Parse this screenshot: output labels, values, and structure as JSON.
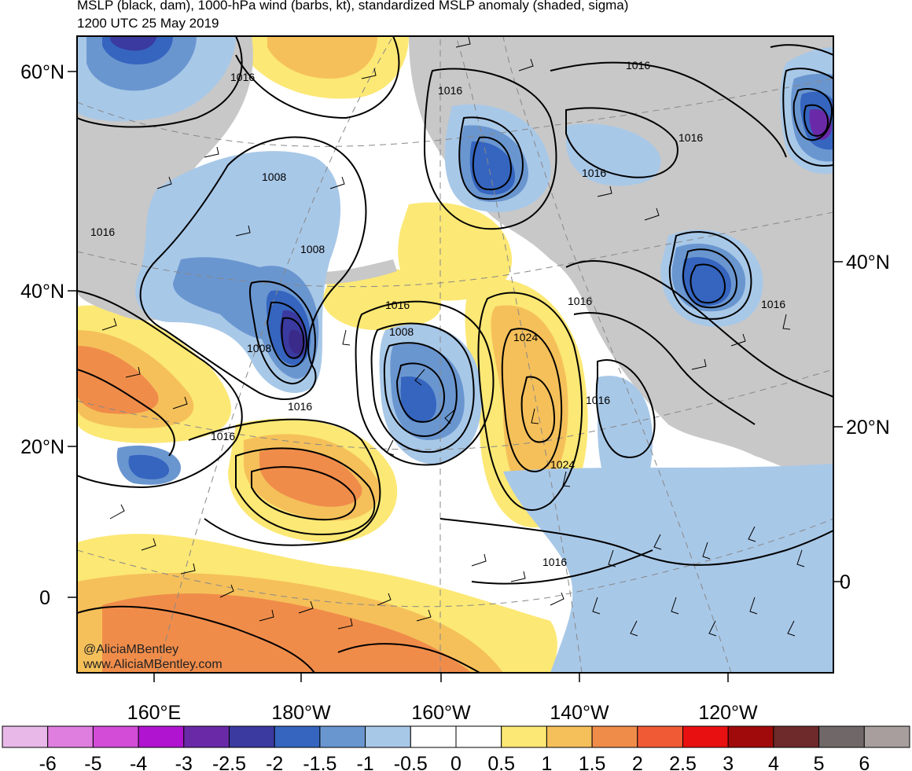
{
  "header": {
    "title": "MSLP (black, dam), 1000-hPa wind (barbs, kt), standardized MSLP anomaly (shaded, sigma)",
    "datetime": "1200 UTC 25 May 2019"
  },
  "map": {
    "projection": "polar-stereographic",
    "region": "North Pacific",
    "lat_labels_left": [
      "60°N",
      "40°N",
      "20°N",
      "0"
    ],
    "lat_labels_right": [
      "40°N",
      "20°N",
      "0"
    ],
    "lon_labels": [
      "160°E",
      "180°W",
      "160°W",
      "140°W",
      "120°W"
    ],
    "contour_labels": [
      "1016",
      "1016",
      "1008",
      "1008",
      "1016",
      "1016",
      "1016",
      "1016",
      "1016",
      "1008",
      "1024",
      "1016",
      "1008",
      "1016",
      "1016",
      "1016",
      "1024",
      "1016",
      "1016"
    ],
    "land_color": "#c8c8c8",
    "contour_color": "#000000"
  },
  "credits": {
    "line1": "@AliciaMBentley",
    "line2": "www.AliciaMBentley.com"
  },
  "colorbar": {
    "labels": [
      "-6",
      "-5",
      "-4",
      "-3",
      "-2.5",
      "-2",
      "-1.5",
      "-1",
      "-0.5",
      "0",
      "0.5",
      "1",
      "1.5",
      "2",
      "2.5",
      "3",
      "4",
      "5",
      "6"
    ],
    "colors": [
      "#e8b8e8",
      "#e07ee0",
      "#d24cd8",
      "#b014d0",
      "#6a2aa8",
      "#3a3aa0",
      "#3565bf",
      "#6a96d0",
      "#a8c8e8",
      "#ffffff",
      "#ffffff",
      "#fce874",
      "#f5c05a",
      "#f08c4a",
      "#f05a35",
      "#e81010",
      "#a00a0a",
      "#6e2a2a",
      "#706868",
      "#a89e9e"
    ]
  }
}
